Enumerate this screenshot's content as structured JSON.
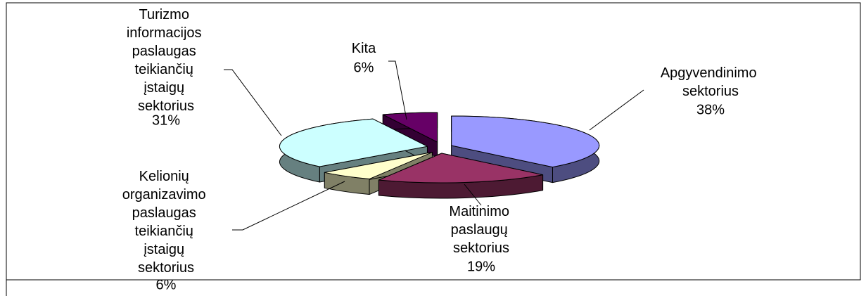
{
  "chart_data": {
    "type": "pie",
    "categories": [
      "Apgyvendinimo sektorius",
      "Maitinimo paslaugų sektorius",
      "Kelionių organizavimo paslaugas teikiančių įstaigų sektorius",
      "Turizmo informacijos paslaugas teikiančių įstaigų sektorius",
      "Kita"
    ],
    "values": [
      38,
      19,
      6,
      31,
      6
    ],
    "value_labels": [
      "38%",
      "19%",
      "6%",
      "31%",
      "6%"
    ],
    "colors": [
      "#9999ff",
      "#993366",
      "#ffffcc",
      "#ccffff",
      "#660066"
    ],
    "three_d": true,
    "exploded": true
  }
}
